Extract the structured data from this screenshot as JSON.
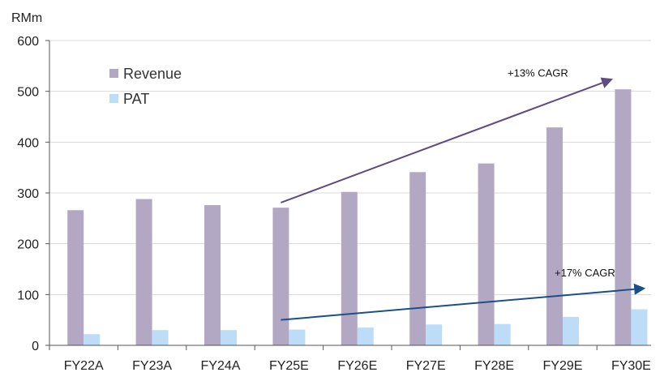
{
  "chart_data": {
    "type": "bar",
    "title": "",
    "ylabel": "RMm",
    "xlabel": "",
    "ylim": [
      0,
      600
    ],
    "yticks": [
      0,
      100,
      200,
      300,
      400,
      500,
      600
    ],
    "grid": true,
    "legend_position": "top-left",
    "categories": [
      "FY22A",
      "FY23A",
      "FY24A",
      "FY25E",
      "FY26E",
      "FY27E",
      "FY28E",
      "FY29E",
      "FY30E"
    ],
    "series": [
      {
        "name": "Revenue",
        "color": "#b3a8c4",
        "values": [
          266,
          288,
          276,
          271,
          302,
          341,
          358,
          429,
          504
        ]
      },
      {
        "name": "PAT",
        "color": "#bcdcf8",
        "values": [
          22,
          30,
          30,
          31,
          35,
          41,
          42,
          56,
          71
        ]
      }
    ],
    "annotations": [
      {
        "text": "+13% CAGR",
        "color": "#5e4c7e",
        "from": {
          "category": "FY25E",
          "value": 281
        },
        "to": {
          "category": "FY30E",
          "value": 523
        }
      },
      {
        "text": "+17% CAGR",
        "color": "#1b4f8a",
        "from": {
          "category": "FY25E",
          "value": 50
        },
        "to": {
          "category": "FY30E",
          "value": 112
        }
      }
    ]
  }
}
